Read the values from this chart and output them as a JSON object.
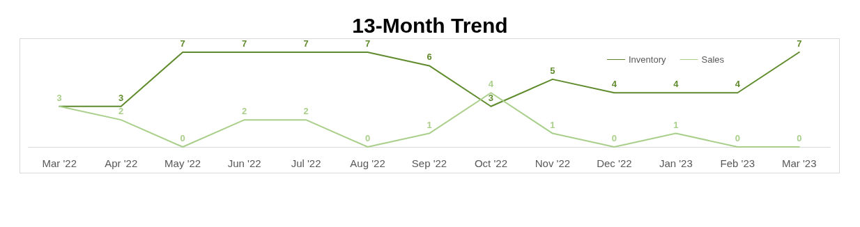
{
  "chart_data": {
    "type": "line",
    "title": "13-Month Trend",
    "categories": [
      "Mar '22",
      "Apr '22",
      "May '22",
      "Jun '22",
      "Jul '22",
      "Aug '22",
      "Sep '22",
      "Oct '22",
      "Nov '22",
      "Dec '22",
      "Jan '23",
      "Feb '23",
      "Mar '23"
    ],
    "series": [
      {
        "name": "Inventory",
        "color": "#5f8b2c",
        "values": [
          3,
          3,
          7,
          7,
          7,
          7,
          6,
          3,
          5,
          4,
          4,
          4,
          7
        ],
        "value_labels": [
          null,
          "3",
          "7",
          "7",
          "7",
          "7",
          "6",
          "3",
          "5",
          "4",
          "4",
          "4",
          "7"
        ]
      },
      {
        "name": "Sales",
        "color": "#a9cf8a",
        "values": [
          3,
          2,
          0,
          2,
          2,
          0,
          1,
          4,
          1,
          0,
          1,
          0,
          0
        ],
        "value_labels": [
          "3",
          "2",
          "0",
          "2",
          "2",
          "0",
          "1",
          "4",
          "1",
          "0",
          "1",
          "0",
          "0"
        ]
      }
    ],
    "legend": "top right",
    "grid": false,
    "line_style": "solid"
  }
}
